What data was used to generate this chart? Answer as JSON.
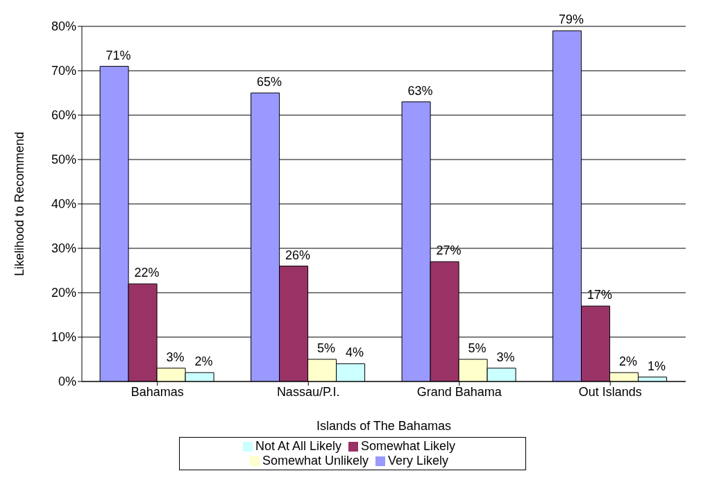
{
  "chart_data": {
    "type": "bar",
    "xlabel": "Islands of The Bahamas",
    "ylabel": "Likelihood to Recommend",
    "categories": [
      "Bahamas",
      "Nassau/P.I.",
      "Grand Bahama",
      "Out Islands"
    ],
    "series": [
      {
        "name": "Very Likely",
        "color": "#9999ff",
        "values": [
          71,
          65,
          63,
          79
        ],
        "value_labels": [
          "71%",
          "65%",
          "63%",
          "79%"
        ]
      },
      {
        "name": "Somewhat Likely",
        "color": "#993366",
        "values": [
          22,
          26,
          27,
          17
        ],
        "value_labels": [
          "22%",
          "26%",
          "27%",
          "17%"
        ]
      },
      {
        "name": "Somewhat Unlikely",
        "color": "#ffffcc",
        "values": [
          3,
          5,
          5,
          2
        ],
        "value_labels": [
          "3%",
          "5%",
          "5%",
          "2%"
        ]
      },
      {
        "name": "Not At All Likely",
        "color": "#ccffff",
        "values": [
          2,
          4,
          3,
          1
        ],
        "value_labels": [
          "2%",
          "4%",
          "3%",
          "1%"
        ]
      }
    ],
    "ylim": [
      0,
      80
    ],
    "yticks": [
      {
        "value": 0,
        "label": "0%"
      },
      {
        "value": 10,
        "label": "10%"
      },
      {
        "value": 20,
        "label": "20%"
      },
      {
        "value": 30,
        "label": "30%"
      },
      {
        "value": 40,
        "label": "40%"
      },
      {
        "value": 50,
        "label": "50%"
      },
      {
        "value": 60,
        "label": "60%"
      },
      {
        "value": 70,
        "label": "70%"
      },
      {
        "value": 80,
        "label": "80%"
      }
    ],
    "grid": "y",
    "legend": "bottom"
  }
}
